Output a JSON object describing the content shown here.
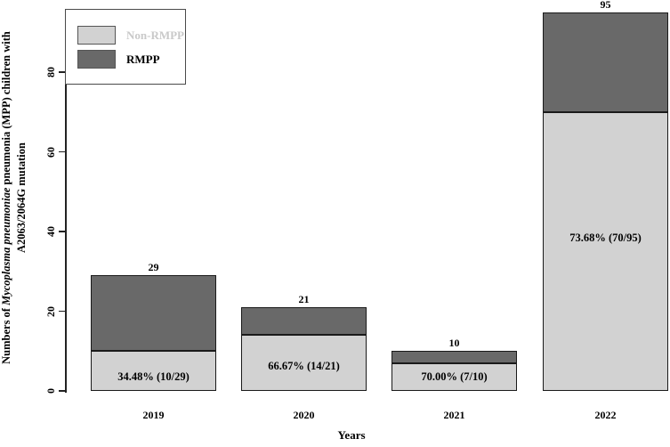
{
  "colors": {
    "background": "#ffffff",
    "non_rmpp_fill": "#d2d2d2",
    "rmpp_fill": "#696969",
    "bar_border": "#1a1a1a",
    "axis": "#222222",
    "text": "#000000",
    "legend_border": "#4a4a4a",
    "non_rmpp_label_text": "#c9c9c9"
  },
  "legend": {
    "items": [
      {
        "label": "Non-RMPP",
        "swatch_color": "#d2d2d2",
        "label_color": "#c9c9c9"
      },
      {
        "label": "RMPP",
        "swatch_color": "#696969",
        "label_color": "#000000"
      }
    ]
  },
  "y_axis": {
    "title_prefix": "Numbers of ",
    "title_italic": "Mycoplasma pneumoniae",
    "title_suffix": " pneumonia (MPP) children with",
    "title_line2": "A2063/2064G mutation"
  },
  "x_axis": {
    "title": "Years"
  },
  "chart_data": {
    "type": "bar",
    "stacked": true,
    "title": "",
    "xlabel": "Years",
    "ylabel": "Numbers of Mycoplasma pneumoniae pneumonia (MPP) children with A2063/2064G mutation",
    "categories": [
      "2019",
      "2020",
      "2021",
      "2022"
    ],
    "series": [
      {
        "name": "Non-RMPP",
        "values": [
          10,
          14,
          7,
          70
        ],
        "color": "#d2d2d2"
      },
      {
        "name": "RMPP",
        "values": [
          19,
          7,
          3,
          25
        ],
        "color": "#696969"
      }
    ],
    "totals": [
      29,
      21,
      10,
      95
    ],
    "total_labels": [
      "29",
      "21",
      "10",
      "95"
    ],
    "segment_labels": [
      "34.48% (10/29)",
      "66.67% (14/21)",
      "70.00% (7/10)",
      "73.68% (70/95)"
    ],
    "segment_label_y_values": [
      3.6,
      6.3,
      3.5,
      38.5
    ],
    "yticks": [
      0,
      20,
      40,
      60,
      80
    ],
    "ylim": [
      0,
      96
    ],
    "grid": false,
    "legend_position": "top-left"
  }
}
